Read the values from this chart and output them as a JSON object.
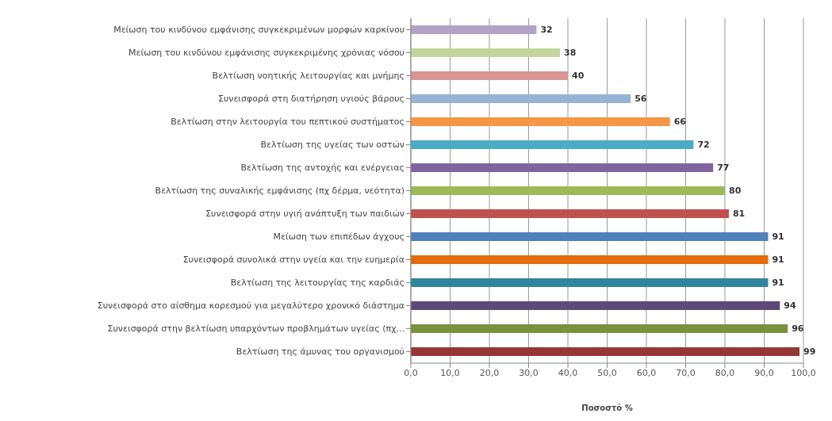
{
  "chart_data": {
    "type": "bar",
    "orientation": "horizontal",
    "xlabel": "Ποσοστό %",
    "categories": [
      "Μείωση του κινδύνου εμφάνισης συγκεκριμένων μορφών καρκίνου",
      "Μείωση του κινδύνου εμφάνισης συγκεκριμένης χρόνιας νόσου",
      "Βελτίωση νοητικής λειτουργίας και μνήμης",
      "Συνεισφορά στη διατήρηση υγιούς βάρους",
      "Βελτίωση στην λειτουργία του πεπτικού συστήματος",
      "Βελτίωση της υγείας των οστών",
      "Βελτίωση της αντοχής και ενέργειας",
      "Βελτίωση της συναλικής εμφάνισης (πχ δέρμα, νεότητα)",
      "Συνεισφορά στην υγιή ανάπτυξη των παιδιών",
      "Μείωση των επιπέδων άγχους",
      "Συνεισφορά συνολικά στην υγεία και την ευημερία",
      "Βελτίωση της λειτουργίας της καρδιάς",
      "Συνεισφορά στο αίσθημα κορεσμού για μεγαλύτερο χρονικό διάστημα",
      "Συνεισφορά στην βελτίωση υπαρχόντων προβλημάτων υγείας (πχ...",
      "Βελτίωση της άμυνας του οργανισμού"
    ],
    "values": [
      32,
      38,
      40,
      56,
      66,
      72,
      77,
      80,
      81,
      91,
      91,
      91,
      94,
      96,
      99
    ],
    "colors": [
      "#b3a2c7",
      "#c3d69b",
      "#d99694",
      "#95b3d7",
      "#f79646",
      "#4bacc6",
      "#8064a2",
      "#9bbb59",
      "#c0504d",
      "#4f81bd",
      "#e46c0a",
      "#31859c",
      "#5f497a",
      "#77933c",
      "#953735"
    ],
    "xlim": [
      0,
      100
    ],
    "xticks": [
      {
        "value": 0,
        "label": "0,0"
      },
      {
        "value": 10,
        "label": "10,0"
      },
      {
        "value": 20,
        "label": "20,0"
      },
      {
        "value": 30,
        "label": "30,0"
      },
      {
        "value": 40,
        "label": "40,0"
      },
      {
        "value": 50,
        "label": "50,0"
      },
      {
        "value": 60,
        "label": "60,0"
      },
      {
        "value": 70,
        "label": "70,0"
      },
      {
        "value": 80,
        "label": "80,0"
      },
      {
        "value": 90,
        "label": "90,0"
      },
      {
        "value": 100,
        "label": "100,0"
      }
    ],
    "grid": "x",
    "data_labels": true
  }
}
